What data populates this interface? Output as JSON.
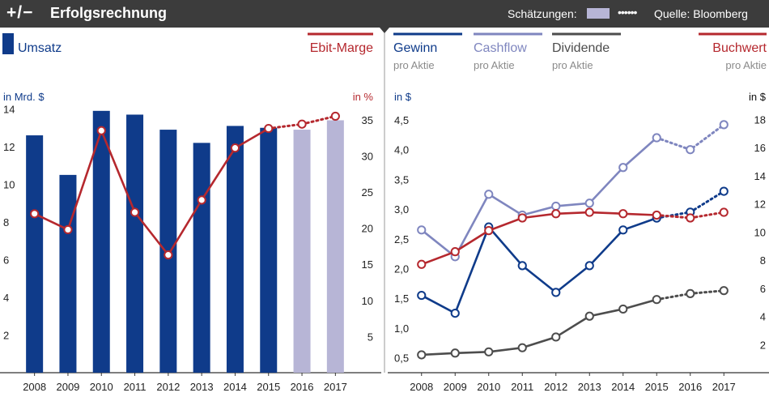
{
  "header": {
    "title": "Erfolgsrechnung",
    "estimates_label": "Schätzungen:",
    "estimates_dots": "••••••",
    "source": "Quelle: Bloomberg"
  },
  "colors": {
    "dark_blue": "#0f3b8a",
    "light_purple": "#b7b5d6",
    "red": "#b5282e",
    "medium_blue": "#7f86bf",
    "gray": "#4d4d4d",
    "header_bg": "#3c3c3c"
  },
  "chart_data": [
    {
      "type": "bar",
      "title": "Umsatz",
      "categories": [
        "2008",
        "2009",
        "2010",
        "2011",
        "2012",
        "2013",
        "2014",
        "2015",
        "2016",
        "2017"
      ],
      "estimate_from_index": 8,
      "ylabel": "in Mrd. $",
      "ylim": [
        0,
        14
      ],
      "yticks": [
        2,
        4,
        6,
        8,
        10,
        12,
        14
      ],
      "series": [
        {
          "name": "Umsatz",
          "axis": "left",
          "values": [
            12.6,
            10.5,
            13.9,
            13.7,
            12.9,
            12.2,
            13.1,
            13.0,
            12.9,
            13.4
          ]
        },
        {
          "name": "Ebit-Marge",
          "axis": "right",
          "values": [
            22,
            19.8,
            33.5,
            22.2,
            16.3,
            23.9,
            31.1,
            33.8,
            34.4,
            35.5
          ]
        }
      ],
      "y2label": "in %",
      "y2lim": [
        0,
        36.5
      ],
      "y2ticks": [
        5,
        10,
        15,
        20,
        25,
        30,
        35
      ]
    },
    {
      "type": "line",
      "categories": [
        "2008",
        "2009",
        "2010",
        "2011",
        "2012",
        "2013",
        "2014",
        "2015",
        "2016",
        "2017"
      ],
      "estimate_from_index": 7,
      "ylabel": "in $",
      "ylim": [
        0.25,
        4.65
      ],
      "yticks": [
        "0,5",
        "1,0",
        "1,5",
        "2,0",
        "2,5",
        "3,0",
        "3,5",
        "4,0",
        "4,5"
      ],
      "y2label": "in $",
      "y2lim": [
        0,
        18.6
      ],
      "y2ticks": [
        2,
        4,
        6,
        8,
        10,
        12,
        14,
        16,
        18
      ],
      "series": [
        {
          "name": "Gewinn",
          "sub": "pro Aktie",
          "axis": "left",
          "values": [
            1.55,
            1.25,
            2.7,
            2.05,
            1.6,
            2.05,
            2.65,
            2.85,
            2.95,
            3.3
          ]
        },
        {
          "name": "Cashflow",
          "sub": "pro Aktie",
          "axis": "left",
          "values": [
            2.65,
            2.2,
            3.25,
            2.9,
            3.05,
            3.1,
            3.7,
            4.2,
            4.0,
            4.42
          ]
        },
        {
          "name": "Dividende",
          "sub": "pro Aktie",
          "axis": "left",
          "values": [
            0.55,
            0.58,
            0.6,
            0.67,
            0.85,
            1.2,
            1.32,
            1.48,
            1.58,
            1.63
          ]
        },
        {
          "name": "Buchwert",
          "sub": "pro Aktie",
          "axis": "right",
          "values": [
            7.7,
            8.6,
            10.1,
            11.0,
            11.3,
            11.4,
            11.3,
            11.2,
            11.0,
            11.4
          ]
        }
      ]
    }
  ]
}
